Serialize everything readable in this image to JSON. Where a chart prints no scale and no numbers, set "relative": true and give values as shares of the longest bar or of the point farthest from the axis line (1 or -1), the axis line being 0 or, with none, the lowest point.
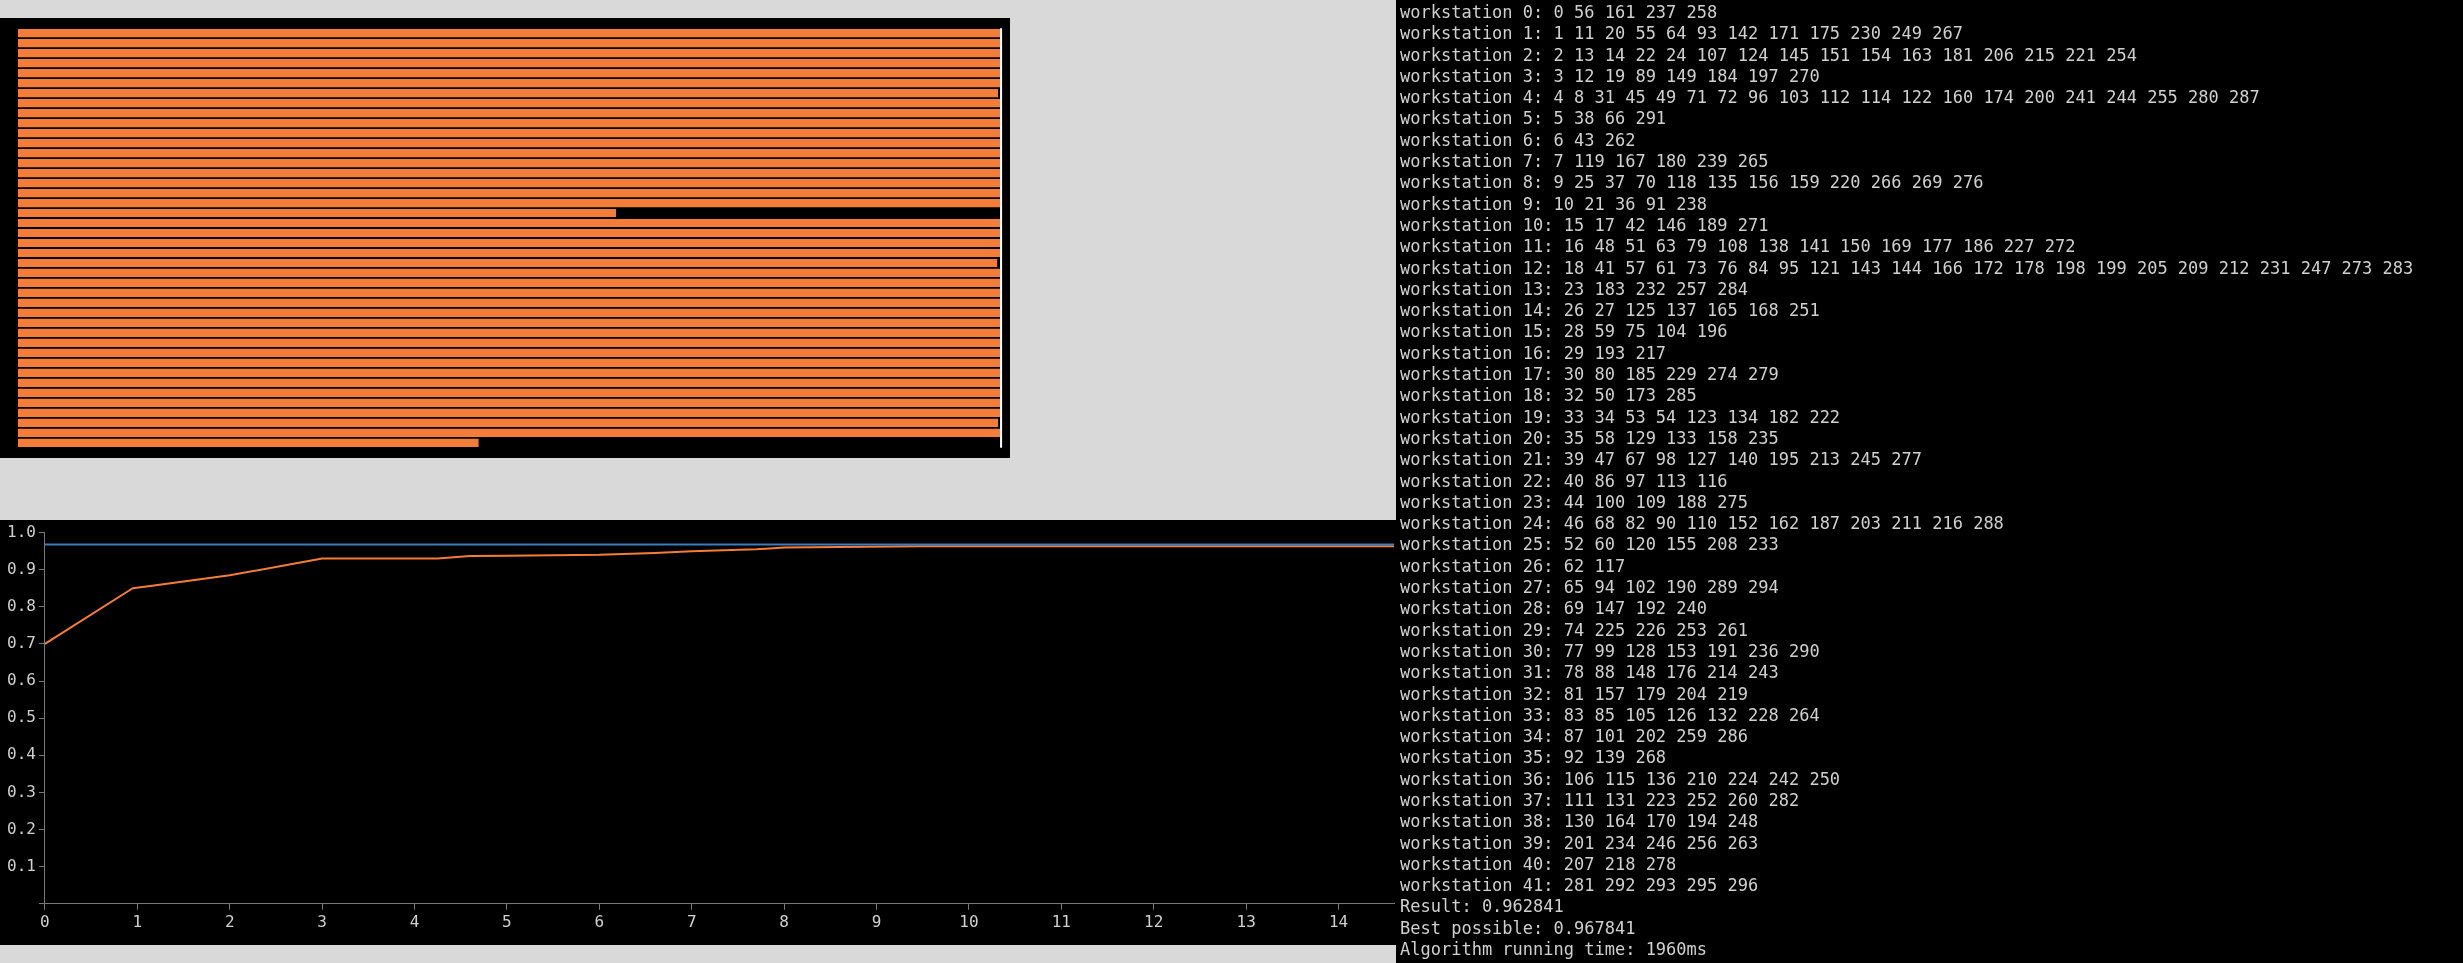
{
  "chart_data": [
    {
      "type": "bar",
      "orientation": "horizontal",
      "relative": true,
      "categories": [
        null,
        null,
        null,
        null,
        null,
        null,
        null,
        null,
        null,
        null,
        null,
        null,
        null,
        null,
        null,
        null,
        null,
        null,
        null,
        null,
        null,
        null,
        null,
        null,
        null,
        null,
        null,
        null,
        null,
        null,
        null,
        null,
        null,
        null,
        null,
        null,
        null,
        null,
        null,
        null,
        null,
        null
      ],
      "values": [
        1,
        1,
        1,
        1,
        1,
        1,
        0.998,
        1,
        1,
        1,
        1,
        1,
        1,
        1,
        1,
        1,
        1,
        1,
        0.609,
        1,
        1,
        1,
        1,
        0.997,
        1,
        1,
        1,
        1,
        1,
        1,
        1,
        1,
        1,
        1,
        1,
        1,
        1,
        1,
        1,
        0.998,
        1,
        0.469
      ],
      "color": "#f47d3a",
      "ref_lines": [
        {
          "axis": "x",
          "value": 1,
          "color": "#ffffff"
        }
      ],
      "grid": false,
      "legend": false
    },
    {
      "type": "line",
      "series": [
        {
          "color": "#f47d3a",
          "x": [
            0,
            0.95,
            1.1,
            2,
            3,
            4.25,
            4.6,
            6,
            6.6,
            7,
            7.7,
            8,
            9.5,
            14.6
          ],
          "values": [
            0.7,
            0.85,
            0.855,
            0.885,
            0.93,
            0.93,
            0.937,
            0.94,
            0.945,
            0.95,
            0.955,
            0.96,
            0.963,
            0.963
          ]
        }
      ],
      "xlim": [
        0,
        14.6
      ],
      "xticks": [
        0,
        1,
        2,
        3,
        4,
        5,
        6,
        7,
        8,
        9,
        10,
        11,
        12,
        13,
        14
      ],
      "ylim": [
        0,
        1
      ],
      "yticks": [
        {
          "value": 0,
          "label": null
        },
        0.1,
        0.2,
        0.3,
        0.4,
        0.5,
        0.6,
        0.7,
        0.8,
        0.9,
        {
          "value": 1,
          "label": "1.0"
        }
      ],
      "ref_lines": [
        {
          "axis": "y",
          "value": 0.968,
          "color": "#3c7dc0"
        }
      ],
      "grid": false,
      "legend": false,
      "marker": "none"
    },
    {
      "type": "other",
      "annotations": [
        "workstation 0: 0 56 161 237 258",
        "workstation 1: 1 11 20 55 64 93 142 171 175 230 249 267",
        "workstation 2: 2 13 14 22 24 107 124 145 151 154 163 181 206 215 221 254",
        "workstation 3: 3 12 19 89 149 184 197 270",
        "workstation 4: 4 8 31 45 49 71 72 96 103 112 114 122 160 174 200 241 244 255 280 287",
        "workstation 5: 5 38 66 291",
        "workstation 6: 6 43 262",
        "workstation 7: 7 119 167 180 239 265",
        "workstation 8: 9 25 37 70 118 135 156 159 220 266 269 276",
        "workstation 9: 10 21 36 91 238",
        "workstation 10: 15 17 42 146 189 271",
        "workstation 11: 16 48 51 63 79 108 138 141 150 169 177 186 227 272",
        "workstation 12: 18 41 57 61 73 76 84 95 121 143 144 166 172 178 198 199 205 209 212 231 247 273 283",
        "workstation 13: 23 183 232 257 284",
        "workstation 14: 26 27 125 137 165 168 251",
        "workstation 15: 28 59 75 104 196",
        "workstation 16: 29 193 217",
        "workstation 17: 30 80 185 229 274 279",
        "workstation 18: 32 50 173 285",
        "workstation 19: 33 34 53 54 123 134 182 222",
        "workstation 20: 35 58 129 133 158 235",
        "workstation 21: 39 47 67 98 127 140 195 213 245 277",
        "workstation 22: 40 86 97 113 116",
        "workstation 23: 44 100 109 188 275",
        "workstation 24: 46 68 82 90 110 152 162 187 203 211 216 288",
        "workstation 25: 52 60 120 155 208 233",
        "workstation 26: 62 117",
        "workstation 27: 65 94 102 190 289 294",
        "workstation 28: 69 147 192 240",
        "workstation 29: 74 225 226 253 261",
        "workstation 30: 77 99 128 153 191 236 290",
        "workstation 31: 78 88 148 176 214 243",
        "workstation 32: 81 157 179 204 219",
        "workstation 33: 83 85 105 126 132 228 264",
        "workstation 34: 87 101 202 259 286",
        "workstation 35: 92 139 268",
        "workstation 36: 106 115 136 210 224 242 250",
        "workstation 37: 111 131 223 252 260 282",
        "workstation 38: 130 164 170 194 248",
        "workstation 39: 201 234 246 256 263",
        "workstation 40: 207 218 278",
        "workstation 41: 281 292 293 295 296",
        "Result: 0.962841",
        "Best possible: 0.967841",
        "Algorithm running time: 1960ms"
      ]
    }
  ]
}
